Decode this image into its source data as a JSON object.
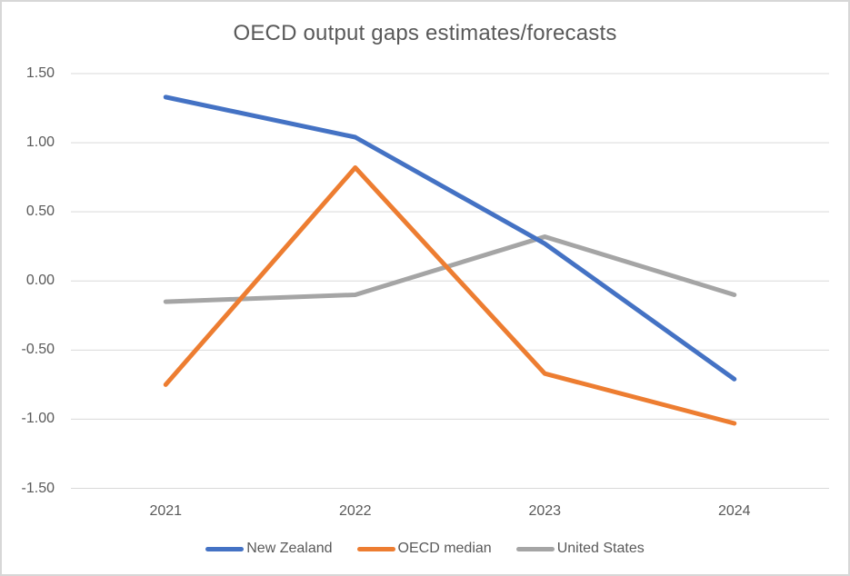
{
  "chart_data": {
    "type": "line",
    "title": "OECD output gaps estimates/forecasts",
    "categories": [
      "2021",
      "2022",
      "2023",
      "2024"
    ],
    "series": [
      {
        "name": "New Zealand",
        "color": "#4472C4",
        "values": [
          1.33,
          1.04,
          0.27,
          -0.71
        ]
      },
      {
        "name": "OECD median",
        "color": "#ED7D31",
        "values": [
          -0.75,
          0.82,
          -0.67,
          -1.03
        ]
      },
      {
        "name": "United States",
        "color": "#A5A5A5",
        "values": [
          -0.15,
          -0.1,
          0.32,
          -0.1
        ]
      }
    ],
    "y_ticks": [
      1.5,
      1.0,
      0.5,
      0.0,
      -0.5,
      -1.0,
      -1.5
    ],
    "y_tick_labels": [
      "1.50",
      "1.00",
      "0.50",
      "0.00",
      "-0.50",
      "-1.00",
      "-1.50"
    ],
    "ylim": [
      -1.5,
      1.5
    ],
    "grid": true,
    "legend_position": "bottom",
    "colors": {
      "text": "#595959",
      "gridline": "#D9D9D9",
      "frame_border": "#D7D7D7",
      "background": "#FFFFFF"
    }
  }
}
